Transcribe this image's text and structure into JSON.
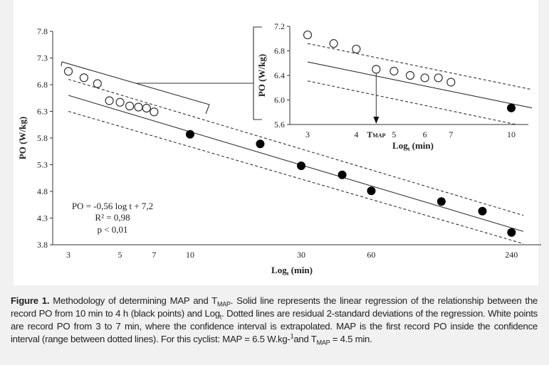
{
  "chart_data": [
    {
      "type": "scatter",
      "xlabel": "Log",
      "xlabel_sub": "t",
      "xlabel_unit": " (min)",
      "ylabel": "PO (W/kg)",
      "x_scale": "log",
      "xlim": [
        2.7,
        290
      ],
      "ylim": [
        3.8,
        7.8
      ],
      "yticks": [
        "7.8",
        "7.3",
        "6.8",
        "6.3",
        "5.8",
        "5.3",
        "4.8",
        "4.3",
        "3.8"
      ],
      "xticks": [
        "3",
        "5",
        "7",
        "10",
        "30",
        "60",
        "240"
      ],
      "open_points": [
        [
          3,
          7.05
        ],
        [
          3.5,
          6.93
        ],
        [
          4,
          6.82
        ],
        [
          4.5,
          6.5
        ],
        [
          5,
          6.47
        ],
        [
          5.5,
          6.4
        ],
        [
          6,
          6.38
        ],
        [
          6.5,
          6.36
        ],
        [
          7,
          6.29
        ]
      ],
      "black_points": [
        [
          10,
          5.87
        ],
        [
          20,
          5.69
        ],
        [
          30,
          5.28
        ],
        [
          45,
          5.11
        ],
        [
          60,
          4.81
        ],
        [
          120,
          4.61
        ],
        [
          180,
          4.43
        ],
        [
          240,
          4.03
        ]
      ],
      "regression": [
        [
          3,
          6.6
        ],
        [
          270,
          4.05
        ]
      ],
      "upper_band": [
        [
          3,
          6.9
        ],
        [
          270,
          4.35
        ]
      ],
      "lower_band": [
        [
          3,
          6.3
        ],
        [
          270,
          3.82
        ]
      ],
      "annotations": [
        "PO = -0,56 log t + 7,2",
        "R² = 0,98",
        "p < 0,01"
      ],
      "grid": false
    },
    {
      "type": "scatter",
      "xlabel": "Log",
      "xlabel_sub": "t",
      "xlabel_unit": " (min)",
      "ylabel": "PO (W/kg)",
      "x_scale": "log",
      "xlim": [
        2.7,
        11.5
      ],
      "ylim": [
        5.6,
        7.2
      ],
      "yticks": [
        "7.2",
        "6.8",
        "6.4",
        "6.0",
        "5.6"
      ],
      "xticks": [
        "3",
        "4",
        "5",
        "6",
        "7",
        "10"
      ],
      "tmap_label": "T",
      "tmap_sub": "MAP",
      "tmap_value": 4.5,
      "open_points": [
        [
          3,
          7.06
        ],
        [
          3.5,
          6.92
        ],
        [
          4,
          6.83
        ],
        [
          4.5,
          6.5
        ],
        [
          5,
          6.47
        ],
        [
          5.5,
          6.4
        ],
        [
          6,
          6.36
        ],
        [
          6.5,
          6.36
        ],
        [
          7,
          6.29
        ]
      ],
      "black_points": [
        [
          10,
          5.87
        ]
      ],
      "regression": [
        [
          3,
          6.62
        ],
        [
          11.3,
          5.87
        ]
      ],
      "upper_band": [
        [
          3,
          6.92
        ],
        [
          11.3,
          6.17
        ]
      ],
      "lower_band": [
        [
          3,
          6.31
        ],
        [
          10.3,
          5.6
        ]
      ],
      "grid": false
    }
  ],
  "caption": {
    "parts": [
      "Figure 1.",
      " Methodology of determining MAP and T",
      "MAP",
      ". Solid line represents the linear regression of the relationship between the record PO from 10 min to 4 h (black points) and Log",
      "t",
      ". Dotted lines are residual 2-standard deviations of the regression. White points are record PO from 3 to 7 min, where the confidence interval is extrapolated. MAP is the first record PO inside the confidence interval (range between dotted lines). For this cyclist: MAP = 6.5 W.kg-",
      "1",
      "and T",
      "MAP",
      " = 4.5 min."
    ]
  }
}
